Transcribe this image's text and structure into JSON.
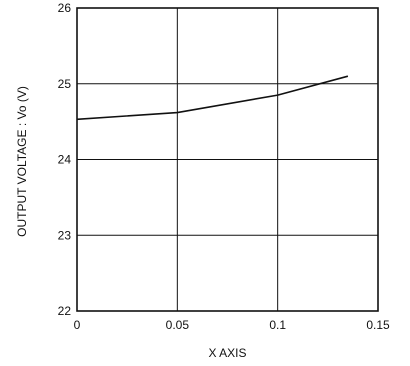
{
  "chart_data": {
    "type": "line",
    "title": "",
    "xlabel": "X AXIS",
    "ylabel": "OUTPUT VOLTAGE : Vo  (V)",
    "xlim": [
      0,
      0.15
    ],
    "ylim": [
      22,
      26
    ],
    "x_ticks": [
      "0",
      "0.05",
      "0.1",
      "0.15"
    ],
    "y_ticks": [
      "22",
      "23",
      "24",
      "25",
      "26"
    ],
    "grid": true,
    "series": [
      {
        "x": [
          0,
          0.05,
          0.1,
          0.135
        ],
        "y": [
          24.53,
          24.62,
          24.85,
          25.1
        ]
      }
    ],
    "colors": {
      "line": "#111111",
      "grid": "#111111",
      "frame": "#111111"
    }
  }
}
